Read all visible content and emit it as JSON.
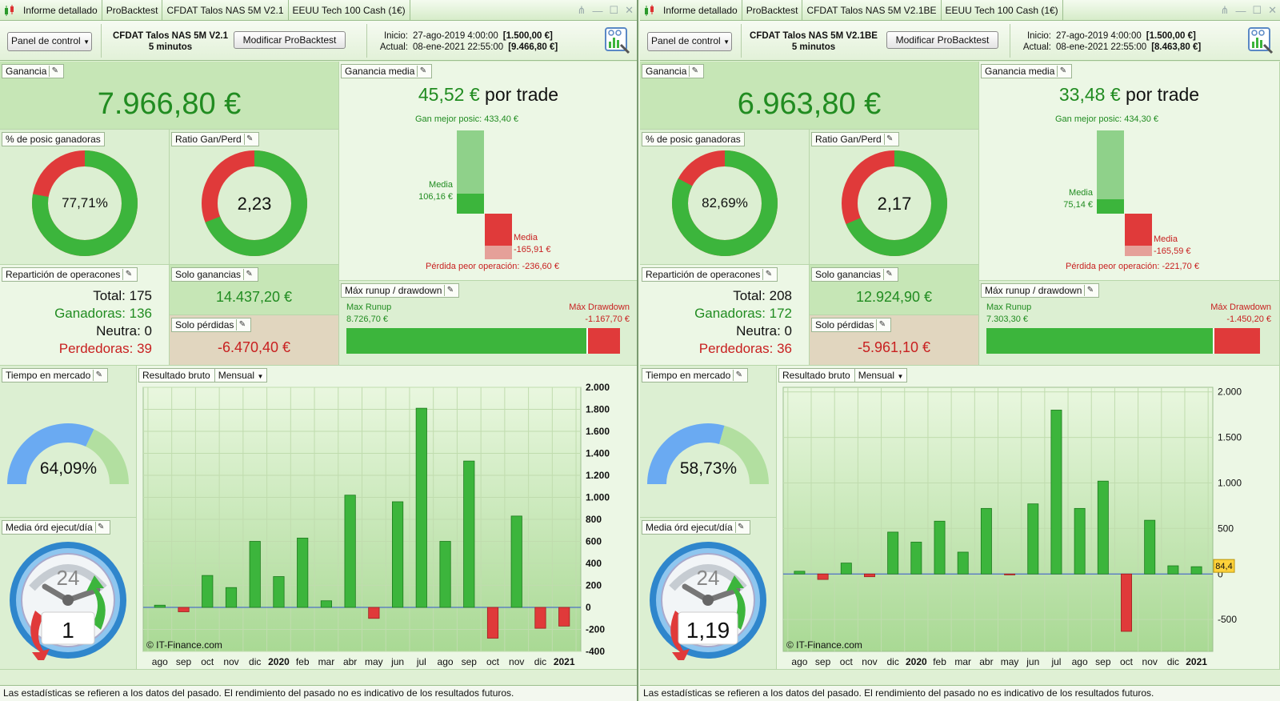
{
  "panels": [
    {
      "tabs": [
        "Informe detallado",
        "ProBacktest",
        "CFDAT Talos NAS 5M V2.1",
        "EEUU Tech 100 Cash (1€)"
      ],
      "panel_control": "Panel de control",
      "strategy_name": "CFDAT Talos NAS 5M V2.1",
      "timeframe": "5 minutos",
      "modify_button": "Modificar ProBacktest",
      "start_label": "Inicio:",
      "start_date": "27-ago-2019 4:00:00",
      "start_value": "[1.500,00 €]",
      "current_label": "Actual:",
      "current_date": "08-ene-2021 22:55:00",
      "current_value": "[9.466,80 €]",
      "ganancia_title": "Ganancia",
      "ganancia_value": "7.966,80 €",
      "win_pct_title": "% de posic ganadoras",
      "win_pct_text": "77,71%",
      "win_fraction": 0.7771,
      "ratio_title": "Ratio Gan/Perd",
      "ratio_text": "2,23",
      "ratio_fraction": 0.6904,
      "avg_title": "Ganancia media",
      "avg_value": "45,52 €",
      "avg_suffix": "por trade",
      "best_label": "Gan mejor posic: 433,40 €",
      "media_label": "Media",
      "media_gain": "106,16 €",
      "media_loss": "-165,91 €",
      "worst_label": "Pérdida peor operación: -236,60 €",
      "best_value": 433.4,
      "avg_gain_value": 106.16,
      "avg_loss_value": 165.91,
      "worst_value": 236.6,
      "rep_title": "Repartición de operacones",
      "total_label": "Total: 175",
      "win_label": "Ganadoras: 136",
      "neutral_label": "Neutra: 0",
      "loss_label": "Perdedoras: 39",
      "solo_gan_title": "Solo ganancias",
      "solo_gan_value": "14.437,20 €",
      "solo_perd_title": "Solo pérdidas",
      "solo_perd_value": "-6.470,40 €",
      "runup_title": "Máx runup / drawdown",
      "runup_label": "Max Runup",
      "runup_value": "8.726,70 €",
      "dd_label": "Máx Drawdown",
      "dd_value": "-1.167,70 €",
      "runup_num": 8726.7,
      "dd_num": 1167.7,
      "time_title": "Tiempo en mercado",
      "time_text": "64,09%",
      "time_fraction": 0.6409,
      "ord_title": "Media órd ejecut/día",
      "ord_clock": "24",
      "ord_value": "1",
      "result_title": "Resultado bruto",
      "result_mode": "Mensual",
      "copyright": "© IT-Finance.com",
      "marker_label": "",
      "footer": "Las estadísticas se refieren a los datos del pasado. El rendimiento del pasado no es indicativo de los resultados futuros.",
      "colors": {
        "green": "#3cb53c",
        "red": "#e03a3a"
      }
    },
    {
      "tabs": [
        "Informe detallado",
        "ProBacktest",
        "CFDAT Talos NAS 5M V2.1BE",
        "EEUU Tech 100 Cash (1€)"
      ],
      "panel_control": "Panel de control",
      "strategy_name": "CFDAT Talos NAS 5M V2.1BE",
      "timeframe": "5 minutos",
      "modify_button": "Modificar ProBacktest",
      "start_label": "Inicio:",
      "start_date": "27-ago-2019 4:00:00",
      "start_value": "[1.500,00 €]",
      "current_label": "Actual:",
      "current_date": "08-ene-2021 22:55:00",
      "current_value": "[8.463,80 €]",
      "ganancia_title": "Ganancia",
      "ganancia_value": "6.963,80 €",
      "win_pct_title": "% de posic ganadoras",
      "win_pct_text": "82,69%",
      "win_fraction": 0.8269,
      "ratio_title": "Ratio Gan/Perd",
      "ratio_text": "2,17",
      "ratio_fraction": 0.6845,
      "avg_title": "Ganancia media",
      "avg_value": "33,48 €",
      "avg_suffix": "por trade",
      "best_label": "Gan mejor posic: 434,30 €",
      "media_label": "Media",
      "media_gain": "75,14 €",
      "media_loss": "-165,59 €",
      "worst_label": "Pérdida peor operación: -221,70 €",
      "best_value": 434.3,
      "avg_gain_value": 75.14,
      "avg_loss_value": 165.59,
      "worst_value": 221.7,
      "rep_title": "Repartición de operacones",
      "total_label": "Total: 208",
      "win_label": "Ganadoras: 172",
      "neutral_label": "Neutra: 0",
      "loss_label": "Perdedoras: 36",
      "solo_gan_title": "Solo ganancias",
      "solo_gan_value": "12.924,90 €",
      "solo_perd_title": "Solo pérdidas",
      "solo_perd_value": "-5.961,10 €",
      "runup_title": "Máx runup / drawdown",
      "runup_label": "Max Runup",
      "runup_value": "7.303,30 €",
      "dd_label": "Máx Drawdown",
      "dd_value": "-1.450,20 €",
      "runup_num": 7303.3,
      "dd_num": 1450.2,
      "time_title": "Tiempo en mercado",
      "time_text": "58,73%",
      "time_fraction": 0.5873,
      "ord_title": "Media órd ejecut/día",
      "ord_clock": "24",
      "ord_value": "1,19",
      "result_title": "Resultado bruto",
      "result_mode": "Mensual",
      "copyright": "© IT-Finance.com",
      "marker_label": "84,4",
      "footer": "Las estadísticas se refieren a los datos del pasado. El rendimiento del pasado no es indicativo de los resultados futuros.",
      "colors": {
        "green": "#3cb53c",
        "red": "#e03a3a"
      }
    }
  ],
  "chart_data": [
    {
      "type": "bar",
      "title": "Resultado bruto (Mensual) — CFDAT Talos NAS 5M V2.1",
      "categories": [
        "ago",
        "sep",
        "oct",
        "nov",
        "dic",
        "2020",
        "feb",
        "mar",
        "abr",
        "may",
        "jun",
        "jul",
        "ago",
        "sep",
        "oct",
        "nov",
        "dic",
        "2021"
      ],
      "values": [
        20,
        -40,
        290,
        180,
        600,
        280,
        630,
        60,
        1020,
        -100,
        960,
        1810,
        600,
        1330,
        -280,
        830,
        -190,
        -170
      ],
      "ylim": [
        -400,
        2000
      ],
      "yticks": [
        -400,
        -200,
        0,
        200,
        400,
        600,
        800,
        1000,
        1200,
        1400,
        1600,
        1800,
        2000
      ],
      "ytick_labels": [
        "-400",
        "-200",
        "0",
        "200",
        "400",
        "600",
        "800",
        "1.000",
        "1.200",
        "1.400",
        "1.600",
        "1.800",
        "2.000"
      ],
      "bold_categories": [
        "2020",
        "2021"
      ],
      "xlabel": "",
      "ylabel": ""
    },
    {
      "type": "bar",
      "title": "Resultado bruto (Mensual) — CFDAT Talos NAS 5M V2.1BE",
      "categories": [
        "ago",
        "sep",
        "oct",
        "nov",
        "dic",
        "2020",
        "feb",
        "mar",
        "abr",
        "may",
        "jun",
        "jul",
        "ago",
        "sep",
        "oct",
        "nov",
        "dic",
        "2021"
      ],
      "values": [
        30,
        -60,
        120,
        -30,
        460,
        350,
        580,
        240,
        720,
        -10,
        770,
        1800,
        720,
        1020,
        -630,
        590,
        90,
        80
      ],
      "ylim": [
        -850,
        2050
      ],
      "yticks": [
        -500,
        0,
        500,
        1000,
        1500,
        2000
      ],
      "ytick_labels": [
        "-500",
        "0",
        "500",
        "1.000",
        "1.500",
        "2.000"
      ],
      "bold_categories": [
        "2020",
        "2021"
      ],
      "xlabel": "",
      "ylabel": ""
    }
  ]
}
